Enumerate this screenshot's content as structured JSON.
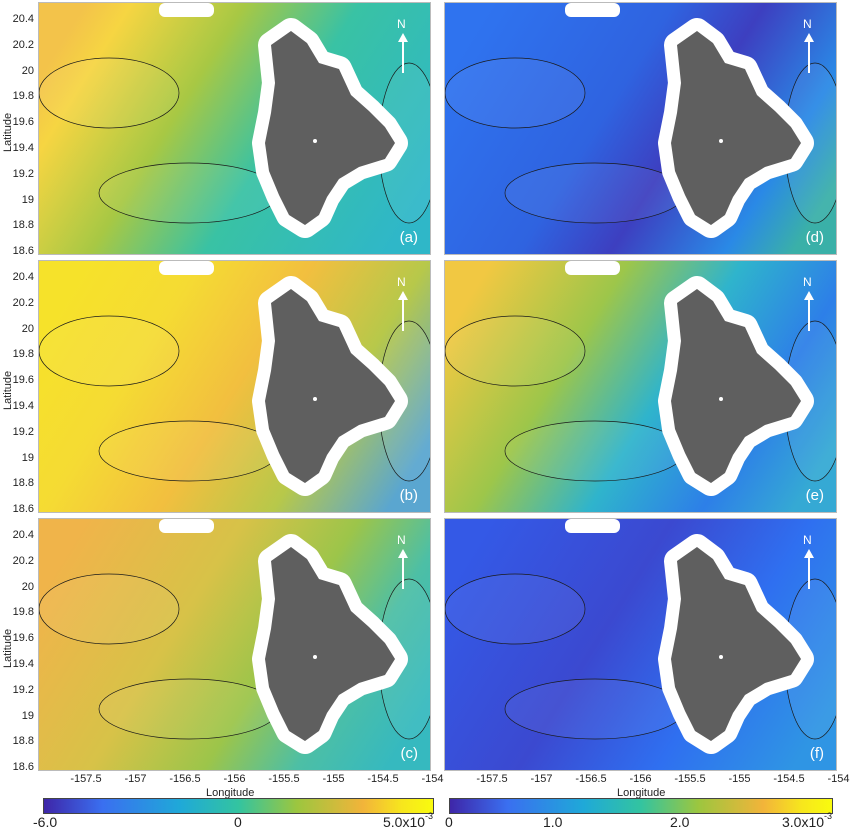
{
  "panels": [
    {
      "label": "(a)",
      "colormap": "left",
      "tone": "a",
      "north": "N"
    },
    {
      "label": "(d)",
      "colormap": "right",
      "tone": "d",
      "north": "N"
    },
    {
      "label": "(b)",
      "colormap": "left",
      "tone": "b",
      "north": "N"
    },
    {
      "label": "(e)",
      "colormap": "right",
      "tone": "e",
      "north": "N"
    },
    {
      "label": "(c)",
      "colormap": "left",
      "tone": "c",
      "north": "N"
    },
    {
      "label": "(f)",
      "colormap": "right",
      "tone": "f",
      "north": "N"
    }
  ],
  "axes": {
    "ylabel": "Latitude",
    "xlabel": "Longitude",
    "lat_ticks": [
      "20.4",
      "20.2",
      "20",
      "19.8",
      "19.6",
      "19.4",
      "19.2",
      "19",
      "18.8",
      "18.6"
    ],
    "lon_ticks": [
      "-157.5",
      "-157",
      "-156.5",
      "-156",
      "-155.5",
      "-155",
      "-154.5",
      "-154"
    ]
  },
  "colorbars": {
    "left": {
      "min_label": "-6.0",
      "mid_label": "0",
      "max_label": "5.0x10",
      "max_exp": "-3"
    },
    "right": {
      "label0": "0",
      "label1": "1.0",
      "label2": "2.0",
      "max_label": "3.0x10",
      "max_exp": "-3"
    }
  },
  "colors": {
    "land": "#5f5f5f",
    "coast": "#ffffff",
    "contour": "#1a1a1a",
    "colormap_stops": [
      "#3e26a8",
      "#3a6ff0",
      "#1fa9d8",
      "#33c4a0",
      "#9cc63f",
      "#f2b43a",
      "#f7e61d",
      "#f9fb0e"
    ]
  }
}
